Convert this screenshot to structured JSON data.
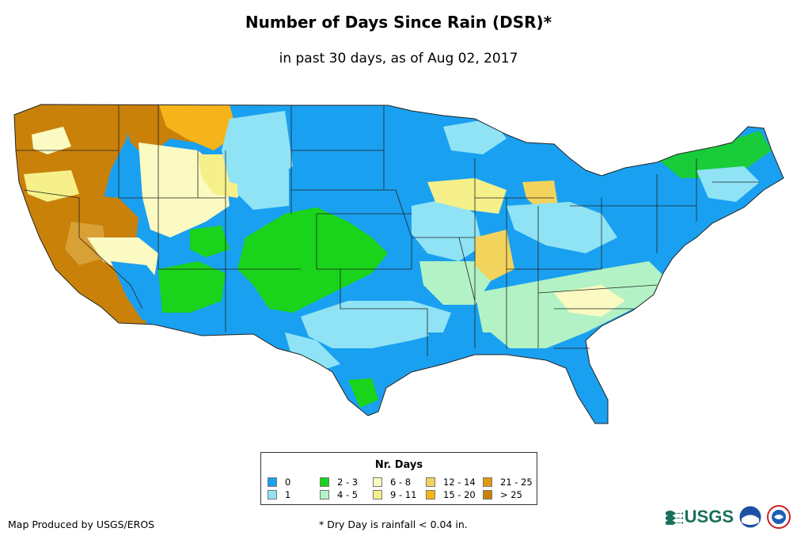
{
  "header": {
    "title": "Number of Days Since Rain (DSR)*",
    "subtitle": "in past 30 days, as of Aug 02, 2017"
  },
  "legend": {
    "title": "Nr. Days",
    "items": [
      {
        "label": "0",
        "color": "#1aa0f0"
      },
      {
        "label": "1",
        "color": "#8fe3f5"
      },
      {
        "label": "2 - 3",
        "color": "#19d41a"
      },
      {
        "label": "4 - 5",
        "color": "#b3f2c5"
      },
      {
        "label": "6 - 8",
        "color": "#fafac2"
      },
      {
        "label": "9 - 11",
        "color": "#f5f08a"
      },
      {
        "label": "12 - 14",
        "color": "#f2d35c"
      },
      {
        "label": "15 - 20",
        "color": "#f5b41a"
      },
      {
        "label": "21 - 25",
        "color": "#e09a10"
      },
      {
        "label": "> 25",
        "color": "#c9810a"
      }
    ]
  },
  "footer": {
    "credit": "Map Produced by USGS/EROS",
    "footnote": "* Dry Day is rainfall < 0.04 in.",
    "logo_text": "USGS"
  }
}
